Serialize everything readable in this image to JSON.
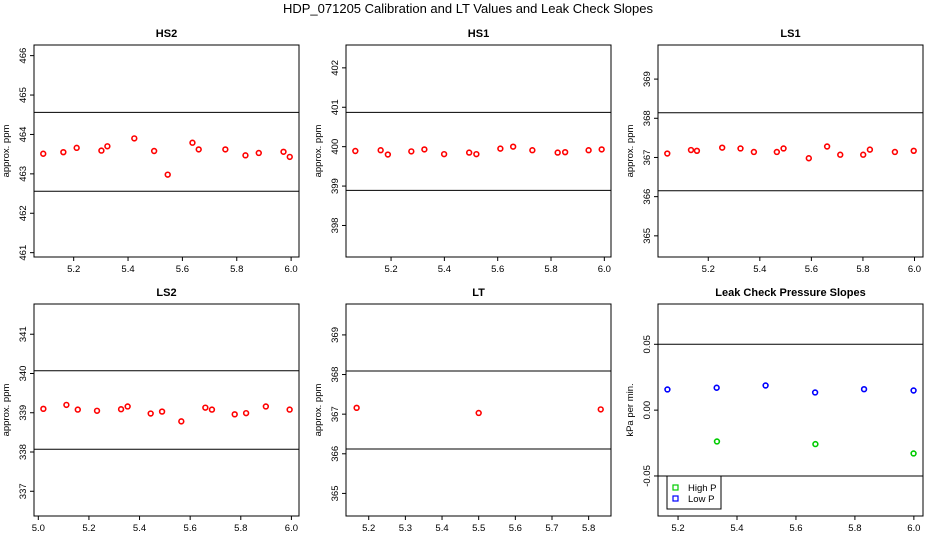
{
  "title": "HDP_071205  Calibration and LT Values and Leak Check Slopes",
  "colors": {
    "points": "#ff0000",
    "high_p": "#00cc00",
    "low_p": "#0000ff",
    "lines": "#000000"
  },
  "chart_data": [
    {
      "type": "scatter",
      "title": "HS2",
      "ylabel": "approx. ppm",
      "xlim": [
        5.054,
        6.029
      ],
      "ylim": [
        460.89,
        466.27
      ],
      "xticks": [
        "5.2",
        "5.4",
        "5.6",
        "5.8",
        "6.0"
      ],
      "yticks": [
        "461",
        "462",
        "463",
        "464",
        "465",
        "466"
      ],
      "hlines": [
        464.56,
        462.56
      ],
      "series": [
        {
          "color": "#ff0000",
          "x": [
            5.088,
            5.162,
            5.211,
            5.302,
            5.324,
            5.423,
            5.496,
            5.546,
            5.637,
            5.66,
            5.758,
            5.832,
            5.881,
            5.972,
            5.995
          ],
          "y": [
            463.51,
            463.55,
            463.66,
            463.59,
            463.7,
            463.9,
            463.58,
            462.98,
            463.79,
            463.62,
            463.62,
            463.47,
            463.53,
            463.56,
            463.43
          ]
        }
      ]
    },
    {
      "type": "scatter",
      "title": "HS1",
      "ylabel": "approx. ppm",
      "xlim": [
        5.031,
        6.025
      ],
      "ylim": [
        397.2,
        402.58
      ],
      "xticks": [
        "5.2",
        "5.4",
        "5.6",
        "5.8",
        "6.0"
      ],
      "yticks": [
        "398",
        "399",
        "400",
        "401",
        "402"
      ],
      "hlines": [
        400.87,
        398.89
      ],
      "series": [
        {
          "color": "#ff0000",
          "x": [
            5.066,
            5.161,
            5.188,
            5.276,
            5.325,
            5.399,
            5.493,
            5.52,
            5.61,
            5.658,
            5.73,
            5.825,
            5.853,
            5.941,
            5.99
          ],
          "y": [
            399.89,
            399.91,
            399.8,
            399.88,
            399.93,
            399.81,
            399.85,
            399.81,
            399.95,
            400.0,
            399.91,
            399.85,
            399.86,
            399.91,
            399.93
          ]
        }
      ]
    },
    {
      "type": "scatter",
      "title": "LS1",
      "ylabel": "approx. ppm",
      "xlim": [
        5.005,
        6.033
      ],
      "ylim": [
        364.46,
        369.87
      ],
      "xticks": [
        "5.2",
        "5.4",
        "5.6",
        "5.8",
        "6.0"
      ],
      "yticks": [
        "365",
        "366",
        "367",
        "368",
        "369"
      ],
      "hlines": [
        368.14,
        366.15
      ],
      "series": [
        {
          "color": "#ff0000",
          "x": [
            5.041,
            5.133,
            5.156,
            5.254,
            5.325,
            5.377,
            5.466,
            5.492,
            5.59,
            5.661,
            5.712,
            5.801,
            5.827,
            5.924,
            5.997
          ],
          "y": [
            367.1,
            367.19,
            367.17,
            367.25,
            367.23,
            367.14,
            367.14,
            367.23,
            366.98,
            367.28,
            367.07,
            367.07,
            367.2,
            367.14,
            367.17
          ]
        }
      ]
    },
    {
      "type": "scatter",
      "title": "LS2",
      "ylabel": "approx. ppm",
      "xlim": [
        4.983,
        6.03
      ],
      "ylim": [
        336.37,
        341.77
      ],
      "xticks": [
        "5.0",
        "5.2",
        "5.4",
        "5.6",
        "5.8",
        "6.0"
      ],
      "yticks": [
        "337",
        "338",
        "339",
        "340",
        "341"
      ],
      "hlines": [
        340.07,
        338.07
      ],
      "series": [
        {
          "color": "#ff0000",
          "x": [
            5.02,
            5.111,
            5.156,
            5.232,
            5.327,
            5.353,
            5.444,
            5.489,
            5.565,
            5.66,
            5.686,
            5.776,
            5.821,
            5.899,
            5.993
          ],
          "y": [
            339.1,
            339.2,
            339.08,
            339.05,
            339.09,
            339.16,
            338.98,
            339.03,
            338.78,
            339.13,
            339.08,
            338.96,
            338.99,
            339.16,
            339.08
          ]
        }
      ]
    },
    {
      "type": "scatter",
      "title": "LT",
      "ylabel": "approx. ppm",
      "xlim": [
        5.138,
        5.861
      ],
      "ylim": [
        364.43,
        369.78
      ],
      "xticks": [
        "5.2",
        "5.3",
        "5.4",
        "5.5",
        "5.6",
        "5.7",
        "5.8"
      ],
      "yticks": [
        "365",
        "366",
        "367",
        "368",
        "369"
      ],
      "hlines": [
        368.09,
        366.12
      ],
      "series": [
        {
          "color": "#ff0000",
          "x": [
            5.167,
            5.5,
            5.833
          ],
          "y": [
            367.16,
            367.03,
            367.12
          ]
        }
      ]
    },
    {
      "type": "scatter",
      "title": "Leak Check Pressure Slopes",
      "ylabel": "kPa per min.",
      "xlim": [
        5.132,
        6.031
      ],
      "ylim": [
        -0.0804,
        0.0806
      ],
      "xticks": [
        "5.2",
        "5.4",
        "5.6",
        "5.8",
        "6.0"
      ],
      "yticks": [
        "-0.05",
        "0.00",
        "0.05"
      ],
      "hlines": [
        0.05,
        -0.05
      ],
      "legend": {
        "position": "bottom-left"
      },
      "series": [
        {
          "name": "High P",
          "color": "#00cc00",
          "x": [
            5.332,
            5.666,
            5.999
          ],
          "y": [
            -0.0238,
            -0.0258,
            -0.0329
          ]
        },
        {
          "name": "Low P",
          "color": "#0000ff",
          "x": [
            5.164,
            5.331,
            5.497,
            5.665,
            5.831,
            5.999
          ],
          "y": [
            0.0157,
            0.017,
            0.0187,
            0.0134,
            0.0159,
            0.0149
          ]
        }
      ]
    }
  ]
}
